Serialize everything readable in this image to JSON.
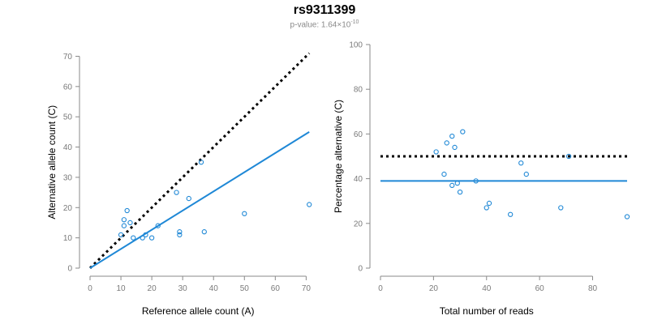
{
  "header": {
    "title": "rs9311399",
    "pvalue_prefix": "p-value: 1.64×10",
    "pvalue_exponent": "-10"
  },
  "colors": {
    "points": "#1f88d6",
    "fit_line": "#1f88d6",
    "reference_line": "#000000",
    "axis": "#8a8a8a"
  },
  "chart_data": [
    {
      "type": "scatter",
      "xlabel": "Reference allele count (A)",
      "ylabel": "Alternative allele count (C)",
      "xlim": [
        0,
        72
      ],
      "ylim": [
        0,
        72
      ],
      "xticks": [
        0,
        10,
        20,
        30,
        40,
        50,
        60,
        70
      ],
      "yticks": [
        0,
        10,
        20,
        30,
        40,
        50,
        60,
        70
      ],
      "points": [
        {
          "x": 10,
          "y": 11
        },
        {
          "x": 11,
          "y": 16
        },
        {
          "x": 11,
          "y": 14
        },
        {
          "x": 12,
          "y": 19
        },
        {
          "x": 13,
          "y": 15
        },
        {
          "x": 14,
          "y": 10
        },
        {
          "x": 17,
          "y": 10
        },
        {
          "x": 18,
          "y": 11
        },
        {
          "x": 20,
          "y": 10
        },
        {
          "x": 22,
          "y": 14
        },
        {
          "x": 28,
          "y": 25
        },
        {
          "x": 29,
          "y": 12
        },
        {
          "x": 29,
          "y": 11
        },
        {
          "x": 32,
          "y": 23
        },
        {
          "x": 36,
          "y": 35
        },
        {
          "x": 37,
          "y": 12
        },
        {
          "x": 50,
          "y": 18
        },
        {
          "x": 71,
          "y": 21
        }
      ],
      "fit_line": {
        "x": [
          0,
          71
        ],
        "y": [
          0,
          45
        ]
      },
      "reference_line": {
        "x": [
          0,
          71
        ],
        "y": [
          0,
          71
        ]
      },
      "grid": false
    },
    {
      "type": "scatter",
      "xlabel": "Total number of reads",
      "ylabel": "Percentage alternative (C)",
      "xlim": [
        0,
        93
      ],
      "ylim": [
        0,
        100
      ],
      "xticks": [
        0,
        20,
        40,
        60,
        80
      ],
      "yticks": [
        0,
        20,
        40,
        60,
        80,
        100
      ],
      "points": [
        {
          "x": 21,
          "y": 52
        },
        {
          "x": 24,
          "y": 42
        },
        {
          "x": 25,
          "y": 56
        },
        {
          "x": 27,
          "y": 59
        },
        {
          "x": 27,
          "y": 37
        },
        {
          "x": 28,
          "y": 54
        },
        {
          "x": 29,
          "y": 38
        },
        {
          "x": 30,
          "y": 34
        },
        {
          "x": 31,
          "y": 61
        },
        {
          "x": 36,
          "y": 39
        },
        {
          "x": 40,
          "y": 27
        },
        {
          "x": 41,
          "y": 29
        },
        {
          "x": 49,
          "y": 24
        },
        {
          "x": 53,
          "y": 47
        },
        {
          "x": 55,
          "y": 42
        },
        {
          "x": 68,
          "y": 27
        },
        {
          "x": 71,
          "y": 50
        },
        {
          "x": 93,
          "y": 23
        }
      ],
      "fit_line": {
        "x": [
          0,
          93
        ],
        "y": [
          39,
          39
        ]
      },
      "reference_line": {
        "x": [
          0,
          93
        ],
        "y": [
          50,
          50
        ]
      },
      "grid": false
    }
  ]
}
